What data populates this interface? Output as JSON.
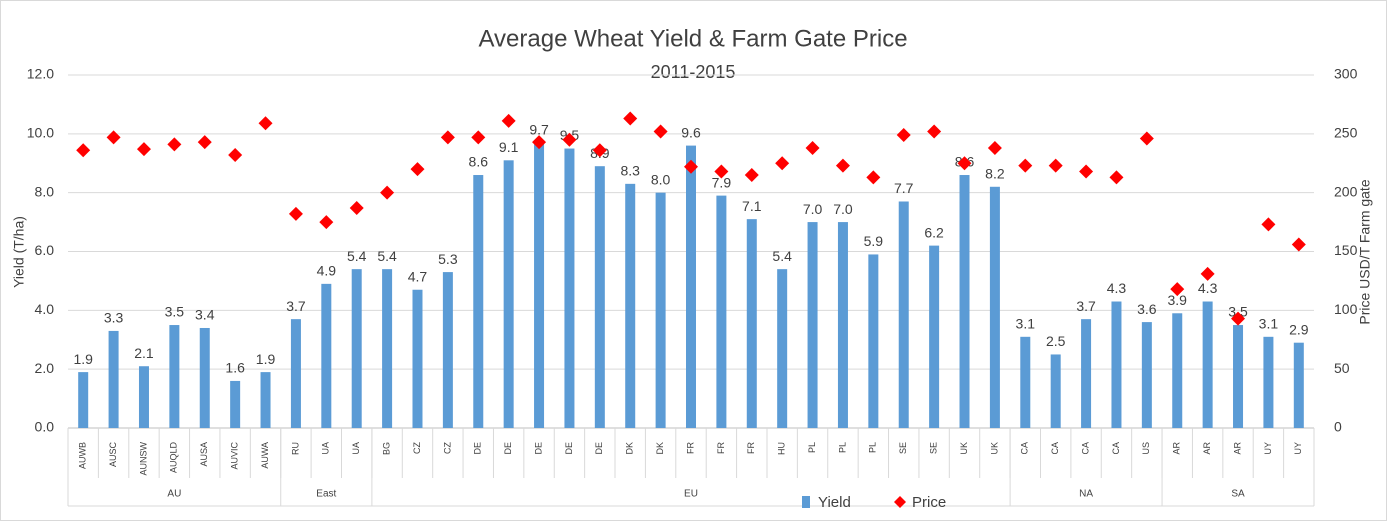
{
  "chart_data": {
    "type": "bar_scatter",
    "title": "Average Wheat Yield & Farm Gate Price",
    "subtitle": "2011-2015",
    "y_label": "Yield (T/ha)",
    "y2_label": "Price USD/T Farm gate",
    "categories": [
      "AUWB",
      "AUSC",
      "AUNSW",
      "AUQLD",
      "AUSA",
      "AUVIC",
      "AUWA",
      "RU",
      "UA",
      "UA",
      "BG",
      "CZ",
      "CZ",
      "DE",
      "DE",
      "DE",
      "DE",
      "DE",
      "DK",
      "DK",
      "FR",
      "FR",
      "FR",
      "HU",
      "PL",
      "PL",
      "PL",
      "SE",
      "SE",
      "UK",
      "UK",
      "CA",
      "CA",
      "CA",
      "CA",
      "US",
      "AR",
      "AR",
      "AR",
      "UY",
      "UY"
    ],
    "groups": [
      {
        "name": "AU",
        "size": 7
      },
      {
        "name": "East",
        "size": 3
      },
      {
        "name": "EU",
        "size": 21
      },
      {
        "name": "NA",
        "size": 5
      },
      {
        "name": "SA",
        "size": 5
      }
    ],
    "series": [
      {
        "name": "Yield",
        "type": "bar",
        "color": "#5b9bd5",
        "values": [
          1.9,
          3.3,
          2.1,
          3.5,
          3.4,
          1.6,
          1.9,
          3.7,
          4.9,
          5.4,
          5.4,
          4.7,
          5.3,
          8.6,
          9.1,
          9.7,
          9.5,
          8.9,
          8.3,
          8.0,
          9.6,
          7.9,
          7.1,
          5.4,
          7.0,
          7.0,
          5.9,
          7.7,
          6.2,
          8.6,
          8.2,
          3.1,
          2.5,
          3.7,
          4.3,
          3.6,
          3.9,
          4.3,
          3.5,
          3.1,
          2.9
        ],
        "value_labels": [
          "1.9",
          "3.3",
          "2.1",
          "3.5",
          "3.4",
          "1.6",
          "1.9",
          "3.7",
          "4.9",
          "5.4",
          "5.4",
          "4.7",
          "5.3",
          "8.6",
          "9.1",
          "9.7",
          "9.5",
          "8.9",
          "8.3",
          "8.0",
          "9.6",
          "7.9",
          "7.1",
          "5.4",
          "7.0",
          "7.0",
          "5.9",
          "7.7",
          "6.2",
          "8.6",
          "8.2",
          "3.1",
          "2.5",
          "3.7",
          "4.3",
          "3.6",
          "3.9",
          "4.3",
          "3.5",
          "3.1",
          "2.9"
        ]
      },
      {
        "name": "Price",
        "type": "scatter",
        "axis": "y2",
        "color": "#ff0000",
        "values": [
          236,
          247,
          237,
          241,
          243,
          232,
          259,
          182,
          175,
          187,
          200,
          220,
          247,
          247,
          261,
          243,
          245,
          236,
          263,
          252,
          222,
          218,
          215,
          225,
          238,
          223,
          213,
          249,
          252,
          225,
          238,
          223,
          223,
          218,
          213,
          246,
          118,
          131,
          93,
          173,
          156
        ]
      }
    ],
    "ylim": [
      0,
      12
    ],
    "yticks": [
      {
        "value": 0,
        "label": "0.0"
      },
      {
        "value": 2,
        "label": "2.0"
      },
      {
        "value": 4,
        "label": "4.0"
      },
      {
        "value": 6,
        "label": "6.0"
      },
      {
        "value": 8,
        "label": "8.0"
      },
      {
        "value": 10,
        "label": "10.0"
      },
      {
        "value": 12,
        "label": "12.0"
      }
    ],
    "y2lim": [
      0,
      300
    ],
    "y2ticks": [
      0,
      50,
      100,
      150,
      200,
      250,
      300
    ],
    "grid": true,
    "legend": "bottom"
  }
}
